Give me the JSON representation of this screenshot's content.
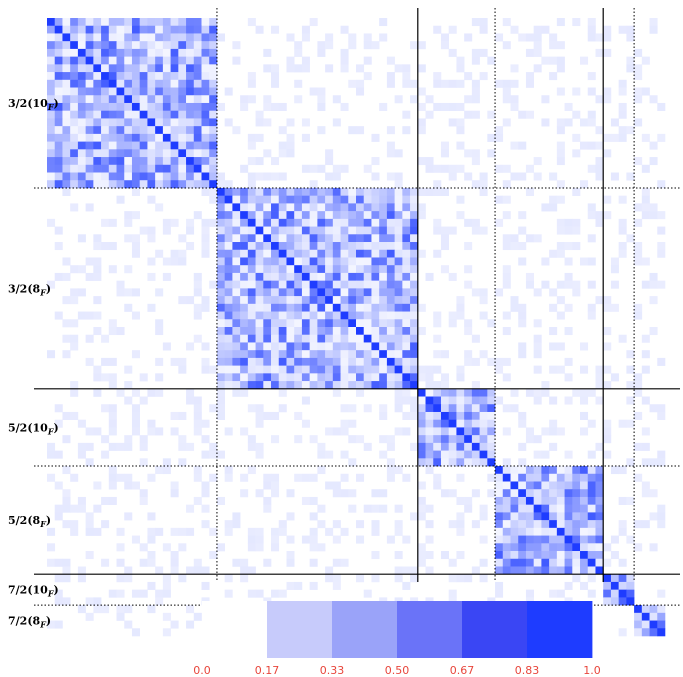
{
  "chart_data": {
    "type": "heatmap",
    "title": "",
    "xlabel": "",
    "ylabel": "",
    "blocks": [
      {
        "label": "3/2(10",
        "sub": "F",
        "size": 22
      },
      {
        "label": "3/2(8",
        "sub": "F",
        "size": 26
      },
      {
        "label": "5/2(10",
        "sub": "F",
        "size": 10
      },
      {
        "label": "5/2(8",
        "sub": "F",
        "size": 14
      },
      {
        "label": "7/2(10",
        "sub": "F",
        "size": 4
      },
      {
        "label": "7/2(8",
        "sub": "F",
        "size": 4
      }
    ],
    "solid_boundaries_after_block": [
      1,
      3
    ],
    "dotted_boundaries_after_block": [
      0,
      2,
      4
    ],
    "diagonal_value": 1.0,
    "within_block_range": [
      0.05,
      0.85
    ],
    "off_block_range": [
      0.0,
      0.12
    ],
    "colorbar": {
      "ticks": [
        "0.0",
        "0.17",
        "0.33",
        "0.50",
        "0.67",
        "0.83",
        "1.0"
      ],
      "bins": [
        {
          "from": 0.0,
          "to": 0.17,
          "color": "#ffffff"
        },
        {
          "from": 0.17,
          "to": 0.33,
          "color": "#c7cbfb"
        },
        {
          "from": 0.33,
          "to": 0.5,
          "color": "#9aa3f9"
        },
        {
          "from": 0.5,
          "to": 0.67,
          "color": "#6a73f8"
        },
        {
          "from": 0.67,
          "to": 0.83,
          "color": "#3a46f4"
        },
        {
          "from": 0.83,
          "to": 1.0,
          "color": "#1e3cff"
        }
      ]
    },
    "colors": {
      "high": "#1e3cff",
      "tick_label": "#e8463c"
    }
  }
}
